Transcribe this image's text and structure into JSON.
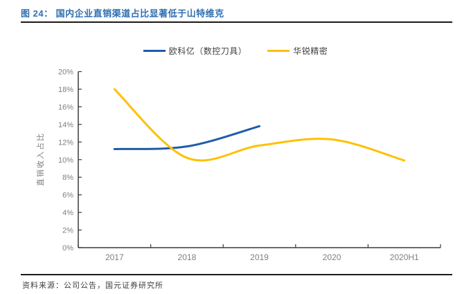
{
  "figure": {
    "title": "图 24： 国内企业直销渠道占比显著低于山特维克",
    "source": "资料来源：公司公告，国元证券研究所"
  },
  "colors": {
    "title_blue": "#2F6FB2",
    "rule_dark": "#1a1a1a",
    "axis_line": "#3a3a3a",
    "tick_label": "#7f7f7f",
    "series_blue": "#1f5ca9",
    "series_gold": "#ffc000"
  },
  "chart_data": {
    "type": "line",
    "smooth": true,
    "grid": false,
    "legend_position": "top",
    "title": "",
    "xlabel": "",
    "ylabel": "直销收入占比",
    "categories": [
      "2017",
      "2018",
      "2019",
      "2020",
      "2020H1"
    ],
    "series": [
      {
        "name": "欧科亿（数控刀具）",
        "color": "#1f5ca9",
        "values": [
          11.2,
          11.5,
          13.8,
          null,
          null
        ]
      },
      {
        "name": "华锐精密",
        "color": "#ffc000",
        "values": [
          18.0,
          10.2,
          11.6,
          12.3,
          9.9
        ]
      }
    ],
    "ylim": [
      0,
      20
    ],
    "ytick_step": 2,
    "ytick_labels": [
      "0%",
      "2%",
      "4%",
      "6%",
      "8%",
      "10%",
      "12%",
      "14%",
      "16%",
      "18%",
      "20%"
    ]
  }
}
